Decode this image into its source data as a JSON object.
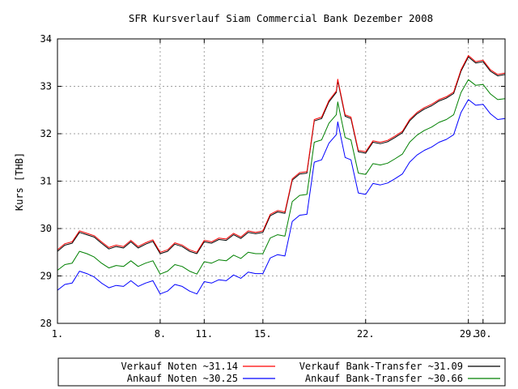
{
  "chart_data": {
    "type": "line",
    "title": "SFR Kursverlauf Siam Commercial Bank Dezember 2008",
    "ylabel": "Kurs [THB]",
    "xlabel": "",
    "ylim": [
      28,
      34
    ],
    "y_ticks": [
      "28",
      "29",
      "30",
      "31",
      "32",
      "33",
      "34"
    ],
    "x_range_days": [
      1,
      31.5
    ],
    "x_ticks": [
      {
        "day": 1,
        "label": "1."
      },
      {
        "day": 8,
        "label": "8."
      },
      {
        "day": 11,
        "label": "11."
      },
      {
        "day": 15,
        "label": "15."
      },
      {
        "day": 22,
        "label": "22."
      },
      {
        "day": 29,
        "label": "29."
      },
      {
        "day": 30,
        "label": "30."
      }
    ],
    "grid": true,
    "legend_position": "bottom",
    "series": [
      {
        "key": "verkauf_noten",
        "name": "Verkauf Noten ~31.14",
        "color": "#ff0000",
        "points": [
          [
            1,
            29.55
          ],
          [
            1.5,
            29.68
          ],
          [
            2,
            29.72
          ],
          [
            2.5,
            29.95
          ],
          [
            3,
            29.9
          ],
          [
            3.5,
            29.85
          ],
          [
            4,
            29.72
          ],
          [
            4.5,
            29.6
          ],
          [
            5,
            29.65
          ],
          [
            5.5,
            29.62
          ],
          [
            6,
            29.75
          ],
          [
            6.5,
            29.62
          ],
          [
            7,
            29.7
          ],
          [
            7.5,
            29.76
          ],
          [
            8,
            29.5
          ],
          [
            8.5,
            29.55
          ],
          [
            9,
            29.7
          ],
          [
            9.5,
            29.65
          ],
          [
            10,
            29.55
          ],
          [
            10.5,
            29.5
          ],
          [
            11,
            29.75
          ],
          [
            11.5,
            29.72
          ],
          [
            12,
            29.8
          ],
          [
            12.5,
            29.78
          ],
          [
            13,
            29.9
          ],
          [
            13.5,
            29.82
          ],
          [
            14,
            29.95
          ],
          [
            14.5,
            29.92
          ],
          [
            15,
            29.95
          ],
          [
            15.5,
            30.3
          ],
          [
            16,
            30.38
          ],
          [
            16.5,
            30.35
          ],
          [
            17,
            31.05
          ],
          [
            17.5,
            31.18
          ],
          [
            18,
            31.2
          ],
          [
            18.5,
            32.3
          ],
          [
            19,
            32.35
          ],
          [
            19.5,
            32.7
          ],
          [
            20,
            32.9
          ],
          [
            20.1,
            33.15
          ],
          [
            20.6,
            32.4
          ],
          [
            21,
            32.35
          ],
          [
            21.5,
            31.65
          ],
          [
            22,
            31.62
          ],
          [
            22.5,
            31.85
          ],
          [
            23,
            31.82
          ],
          [
            23.5,
            31.86
          ],
          [
            24,
            31.95
          ],
          [
            24.5,
            32.05
          ],
          [
            25,
            32.3
          ],
          [
            25.5,
            32.45
          ],
          [
            26,
            32.55
          ],
          [
            26.5,
            32.62
          ],
          [
            27,
            32.72
          ],
          [
            27.5,
            32.78
          ],
          [
            28,
            32.88
          ],
          [
            28.5,
            33.35
          ],
          [
            29,
            33.65
          ],
          [
            29.5,
            33.52
          ],
          [
            30,
            33.55
          ],
          [
            30.5,
            33.35
          ],
          [
            31,
            33.25
          ],
          [
            31.5,
            33.28
          ]
        ]
      },
      {
        "key": "verkauf_bank_transfer",
        "name": "Verkauf Bank-Transfer ~31.09",
        "color": "#000000",
        "points": [
          [
            1,
            29.52
          ],
          [
            1.5,
            29.65
          ],
          [
            2,
            29.69
          ],
          [
            2.5,
            29.92
          ],
          [
            3,
            29.87
          ],
          [
            3.5,
            29.82
          ],
          [
            4,
            29.69
          ],
          [
            4.5,
            29.57
          ],
          [
            5,
            29.62
          ],
          [
            5.5,
            29.59
          ],
          [
            6,
            29.72
          ],
          [
            6.5,
            29.59
          ],
          [
            7,
            29.67
          ],
          [
            7.5,
            29.73
          ],
          [
            8,
            29.47
          ],
          [
            8.5,
            29.52
          ],
          [
            9,
            29.67
          ],
          [
            9.5,
            29.62
          ],
          [
            10,
            29.52
          ],
          [
            10.5,
            29.47
          ],
          [
            11,
            29.72
          ],
          [
            11.5,
            29.69
          ],
          [
            12,
            29.77
          ],
          [
            12.5,
            29.75
          ],
          [
            13,
            29.87
          ],
          [
            13.5,
            29.79
          ],
          [
            14,
            29.92
          ],
          [
            14.5,
            29.89
          ],
          [
            15,
            29.92
          ],
          [
            15.5,
            30.27
          ],
          [
            16,
            30.35
          ],
          [
            16.5,
            30.32
          ],
          [
            17,
            31.02
          ],
          [
            17.5,
            31.15
          ],
          [
            18,
            31.17
          ],
          [
            18.5,
            32.27
          ],
          [
            19,
            32.32
          ],
          [
            19.5,
            32.67
          ],
          [
            20,
            32.87
          ],
          [
            20.1,
            33.12
          ],
          [
            20.6,
            32.37
          ],
          [
            21,
            32.32
          ],
          [
            21.5,
            31.62
          ],
          [
            22,
            31.59
          ],
          [
            22.5,
            31.82
          ],
          [
            23,
            31.79
          ],
          [
            23.5,
            31.83
          ],
          [
            24,
            31.92
          ],
          [
            24.5,
            32.02
          ],
          [
            25,
            32.27
          ],
          [
            25.5,
            32.42
          ],
          [
            26,
            32.52
          ],
          [
            26.5,
            32.59
          ],
          [
            27,
            32.69
          ],
          [
            27.5,
            32.75
          ],
          [
            28,
            32.85
          ],
          [
            28.5,
            33.32
          ],
          [
            29,
            33.62
          ],
          [
            29.5,
            33.49
          ],
          [
            30,
            33.52
          ],
          [
            30.5,
            33.32
          ],
          [
            31,
            33.22
          ],
          [
            31.5,
            33.25
          ]
        ]
      },
      {
        "key": "ankauf_noten",
        "name": "Ankauf Noten ~30.25",
        "color": "#0000ff",
        "points": [
          [
            1,
            28.7
          ],
          [
            1.5,
            28.82
          ],
          [
            2,
            28.85
          ],
          [
            2.5,
            29.1
          ],
          [
            3,
            29.05
          ],
          [
            3.5,
            28.98
          ],
          [
            4,
            28.85
          ],
          [
            4.5,
            28.75
          ],
          [
            5,
            28.8
          ],
          [
            5.5,
            28.78
          ],
          [
            6,
            28.9
          ],
          [
            6.5,
            28.78
          ],
          [
            7,
            28.85
          ],
          [
            7.5,
            28.9
          ],
          [
            8,
            28.62
          ],
          [
            8.5,
            28.68
          ],
          [
            9,
            28.82
          ],
          [
            9.5,
            28.78
          ],
          [
            10,
            28.68
          ],
          [
            10.5,
            28.62
          ],
          [
            11,
            28.88
          ],
          [
            11.5,
            28.85
          ],
          [
            12,
            28.92
          ],
          [
            12.5,
            28.9
          ],
          [
            13,
            29.02
          ],
          [
            13.5,
            28.95
          ],
          [
            14,
            29.08
          ],
          [
            14.5,
            29.05
          ],
          [
            15,
            29.05
          ],
          [
            15.5,
            29.38
          ],
          [
            16,
            29.45
          ],
          [
            16.5,
            29.42
          ],
          [
            17,
            30.15
          ],
          [
            17.5,
            30.28
          ],
          [
            18,
            30.3
          ],
          [
            18.5,
            31.4
          ],
          [
            19,
            31.45
          ],
          [
            19.5,
            31.8
          ],
          [
            20,
            31.98
          ],
          [
            20.1,
            32.25
          ],
          [
            20.6,
            31.5
          ],
          [
            21,
            31.45
          ],
          [
            21.5,
            30.75
          ],
          [
            22,
            30.72
          ],
          [
            22.5,
            30.95
          ],
          [
            23,
            30.92
          ],
          [
            23.5,
            30.96
          ],
          [
            24,
            31.05
          ],
          [
            24.5,
            31.15
          ],
          [
            25,
            31.4
          ],
          [
            25.5,
            31.55
          ],
          [
            26,
            31.65
          ],
          [
            26.5,
            31.72
          ],
          [
            27,
            31.82
          ],
          [
            27.5,
            31.88
          ],
          [
            28,
            31.98
          ],
          [
            28.5,
            32.45
          ],
          [
            29,
            32.72
          ],
          [
            29.5,
            32.6
          ],
          [
            30,
            32.62
          ],
          [
            30.5,
            32.42
          ],
          [
            31,
            32.3
          ],
          [
            31.5,
            32.32
          ]
        ]
      },
      {
        "key": "ankauf_bank_transfer",
        "name": "Ankauf Bank-Transfer ~30.66",
        "color": "#008000",
        "points": [
          [
            1,
            29.12
          ],
          [
            1.5,
            29.24
          ],
          [
            2,
            29.27
          ],
          [
            2.5,
            29.52
          ],
          [
            3,
            29.47
          ],
          [
            3.5,
            29.4
          ],
          [
            4,
            29.27
          ],
          [
            4.5,
            29.17
          ],
          [
            5,
            29.22
          ],
          [
            5.5,
            29.2
          ],
          [
            6,
            29.32
          ],
          [
            6.5,
            29.2
          ],
          [
            7,
            29.27
          ],
          [
            7.5,
            29.32
          ],
          [
            8,
            29.04
          ],
          [
            8.5,
            29.1
          ],
          [
            9,
            29.24
          ],
          [
            9.5,
            29.2
          ],
          [
            10,
            29.1
          ],
          [
            10.5,
            29.04
          ],
          [
            11,
            29.3
          ],
          [
            11.5,
            29.27
          ],
          [
            12,
            29.34
          ],
          [
            12.5,
            29.32
          ],
          [
            13,
            29.44
          ],
          [
            13.5,
            29.37
          ],
          [
            14,
            29.5
          ],
          [
            14.5,
            29.47
          ],
          [
            15,
            29.47
          ],
          [
            15.5,
            29.8
          ],
          [
            16,
            29.87
          ],
          [
            16.5,
            29.84
          ],
          [
            17,
            30.57
          ],
          [
            17.5,
            30.7
          ],
          [
            18,
            30.72
          ],
          [
            18.5,
            31.82
          ],
          [
            19,
            31.87
          ],
          [
            19.5,
            32.22
          ],
          [
            20,
            32.4
          ],
          [
            20.1,
            32.67
          ],
          [
            20.6,
            31.92
          ],
          [
            21,
            31.87
          ],
          [
            21.5,
            31.17
          ],
          [
            22,
            31.14
          ],
          [
            22.5,
            31.37
          ],
          [
            23,
            31.34
          ],
          [
            23.5,
            31.38
          ],
          [
            24,
            31.47
          ],
          [
            24.5,
            31.57
          ],
          [
            25,
            31.82
          ],
          [
            25.5,
            31.97
          ],
          [
            26,
            32.07
          ],
          [
            26.5,
            32.14
          ],
          [
            27,
            32.24
          ],
          [
            27.5,
            32.3
          ],
          [
            28,
            32.4
          ],
          [
            28.5,
            32.87
          ],
          [
            29,
            33.14
          ],
          [
            29.5,
            33.02
          ],
          [
            30,
            33.04
          ],
          [
            30.5,
            32.84
          ],
          [
            31,
            32.72
          ],
          [
            31.5,
            32.74
          ]
        ]
      }
    ]
  }
}
